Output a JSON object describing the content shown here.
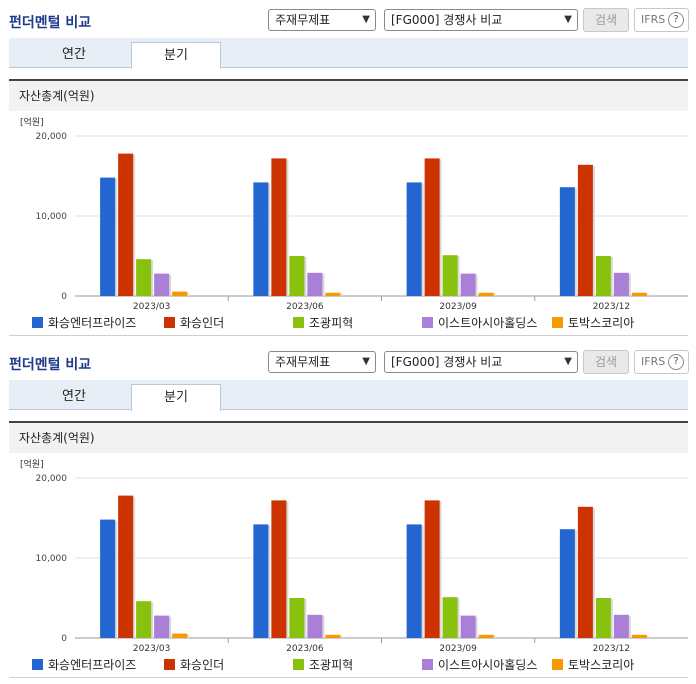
{
  "panels": [
    {
      "header_title": "펀더멘털 비교",
      "select1": "주재무제표",
      "select2": "[FG000] 경쟁사 비교",
      "search_label": "검색",
      "ifrs_label": "IFRS",
      "help_glyph": "?",
      "tabs": [
        "연간",
        "분기"
      ],
      "active_tab": "분기",
      "section_title": "자산총계(억원)"
    },
    {
      "header_title": "펀더멘털 비교",
      "select1": "주재무제표",
      "select2": "[FG000] 경쟁사 비교",
      "search_label": "검색",
      "ifrs_label": "IFRS",
      "help_glyph": "?",
      "tabs": [
        "연간",
        "분기"
      ],
      "active_tab": "분기",
      "section_title": "자산총계(억원)"
    }
  ],
  "icons": {
    "select_arrow": "chevron-down-icon",
    "help": "question-circle-icon"
  },
  "chart_data": [
    {
      "type": "bar",
      "unit_label": "[억원]",
      "categories": [
        "2023/03",
        "2023/06",
        "2023/09",
        "2023/12"
      ],
      "ylim": [
        0,
        20000
      ],
      "yticks": [
        "0",
        "10,000",
        "20,000"
      ],
      "series": [
        {
          "name": "화승엔터프라이즈",
          "color": "#2366d1",
          "values": [
            14800,
            14200,
            14200,
            13600
          ]
        },
        {
          "name": "화승인더",
          "color": "#cc3300",
          "values": [
            17800,
            17200,
            17200,
            16400
          ]
        },
        {
          "name": "조광피혁",
          "color": "#88c10e",
          "values": [
            4600,
            5000,
            5100,
            5000
          ]
        },
        {
          "name": "이스트아시아홀딩스",
          "color": "#a97fd8",
          "values": [
            2800,
            2900,
            2800,
            2900
          ]
        },
        {
          "name": "토박스코리아",
          "color": "#f59a00",
          "values": [
            550,
            400,
            400,
            400
          ]
        }
      ]
    },
    {
      "type": "bar",
      "unit_label": "[억원]",
      "categories": [
        "2023/03",
        "2023/06",
        "2023/09",
        "2023/12"
      ],
      "ylim": [
        0,
        20000
      ],
      "yticks": [
        "0",
        "10,000",
        "20,000"
      ],
      "series": [
        {
          "name": "화승엔터프라이즈",
          "color": "#2366d1",
          "values": [
            14800,
            14200,
            14200,
            13600
          ]
        },
        {
          "name": "화승인더",
          "color": "#cc3300",
          "values": [
            17800,
            17200,
            17200,
            16400
          ]
        },
        {
          "name": "조광피혁",
          "color": "#88c10e",
          "values": [
            4600,
            5000,
            5100,
            5000
          ]
        },
        {
          "name": "이스트아시아홀딩스",
          "color": "#a97fd8",
          "values": [
            2800,
            2900,
            2800,
            2900
          ]
        },
        {
          "name": "토박스코리아",
          "color": "#f59a00",
          "values": [
            550,
            400,
            400,
            400
          ]
        }
      ]
    }
  ]
}
